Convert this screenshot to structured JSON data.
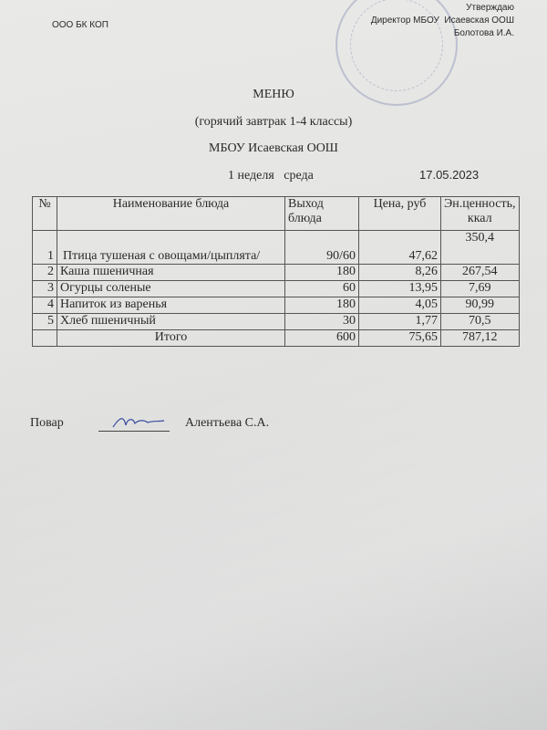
{
  "header": {
    "organization": "ООО БК КОП",
    "approval": [
      "Утверждаю",
      "Директор МБОУ  Исаевская ООШ",
      "Болотова И.А."
    ]
  },
  "title": {
    "main": "МЕНЮ",
    "subtitle": "(горячий завтрак 1-4 классы)",
    "school": "МБОУ Исаевская ООШ",
    "week": "1 неделя   среда",
    "date": "17.05.2023"
  },
  "table": {
    "columns": [
      "№",
      "Наименование блюда",
      "Выход блюда",
      "Цена, руб",
      "Эн.ценность, ккал"
    ],
    "rows": [
      {
        "n": "1",
        "name": "Птица тушеная с овощами/цыплята/",
        "out": "90/60",
        "price": "47,62",
        "kcal": "350,4"
      },
      {
        "n": "2",
        "name": "Каша пшеничная",
        "out": "180",
        "price": "8,26",
        "kcal": "267,54"
      },
      {
        "n": "3",
        "name": "Огурцы соленые",
        "out": "60",
        "price": "13,95",
        "kcal": "7,69"
      },
      {
        "n": "4",
        "name": "Напиток из варенья",
        "out": "180",
        "price": "4,05",
        "kcal": "90,99"
      },
      {
        "n": "5",
        "name": "Хлеб пшеничный",
        "out": "30",
        "price": "1,77",
        "kcal": "70,5"
      }
    ],
    "total": {
      "label": "Итого",
      "out": "600",
      "price": "75,65",
      "kcal": "787,12"
    }
  },
  "footer": {
    "role": "Повар",
    "name": "Алентьева С.А."
  }
}
